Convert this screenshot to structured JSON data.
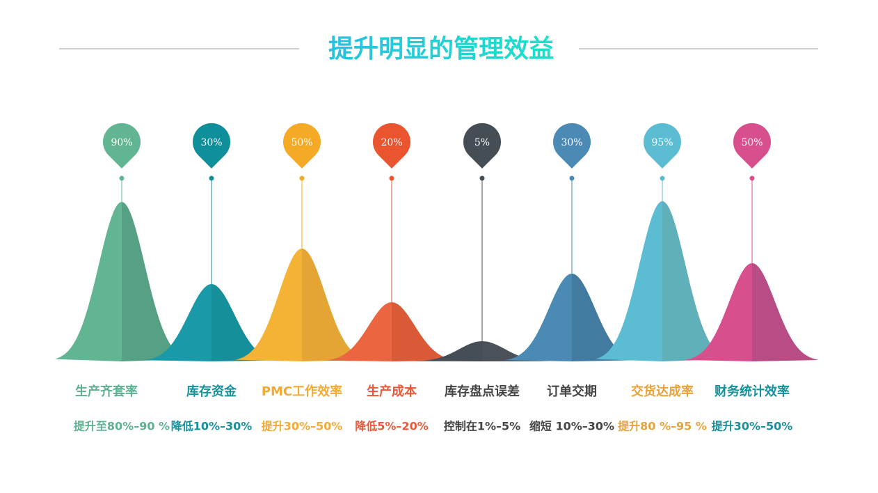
{
  "title": "提升明显的管理效益",
  "items": [
    {
      "pin": "90%",
      "name": "生产齐套率",
      "desc": "提升至80%–90 %"
    },
    {
      "pin": "30%",
      "name": "库存资金",
      "desc": "降低10%–30%"
    },
    {
      "pin": "50%",
      "name": "PMC工作效率",
      "desc": "提升30%–50%"
    },
    {
      "pin": "20%",
      "name": "生产成本",
      "desc": "降低5%–20%"
    },
    {
      "pin": "5%",
      "name": "库存盘点误差",
      "desc": "控制在1%–5%"
    },
    {
      "pin": "30%",
      "name": "订单交期",
      "desc": "缩短 10%–30%"
    },
    {
      "pin": "95%",
      "name": "交货达成率",
      "desc": "提升80 %–95 %"
    },
    {
      "pin": "50%",
      "name": "财务统计效率",
      "desc": "提升30%–50%"
    }
  ]
}
